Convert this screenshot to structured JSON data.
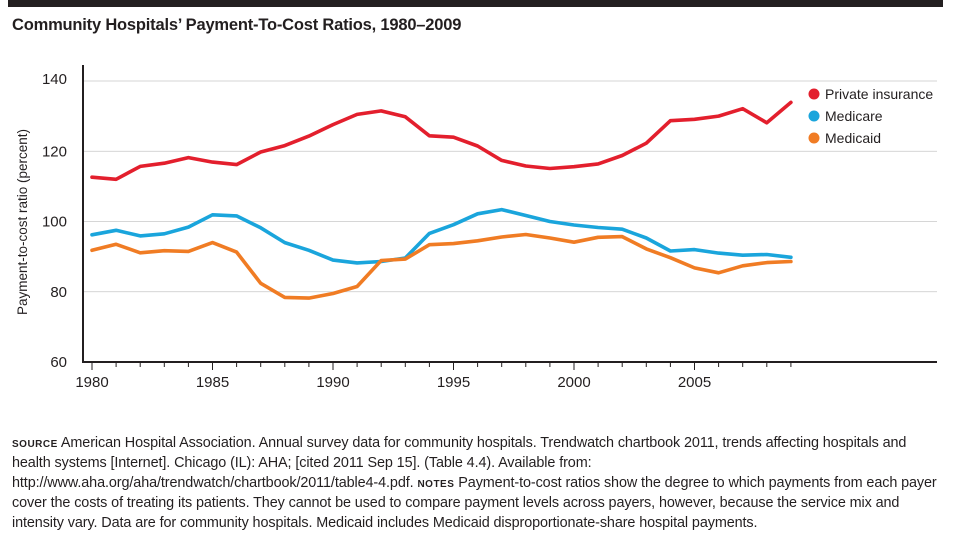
{
  "header": {
    "title": "Community Hospitals’ Payment-To-Cost Ratios, 1980–2009"
  },
  "footnote": {
    "source_label": "Source",
    "source_text": "American Hospital Association. Annual survey data for community hospitals. Trendwatch chartbook 2011, trends affecting hospitals and health systems [Internet]. Chicago (IL): AHA; [cited 2011 Sep 15]. (Table 4.4). Available from: http://www.aha.org/aha/trendwatch/chartbook/2011/table4-4.pdf.",
    "notes_label": "Notes",
    "notes_text": "Payment-to-cost ratios show the degree to which payments from each payer cover the costs of treating its patients. They cannot be used to compare payment levels across payers, however, because the service mix and intensity vary. Data are for community hospitals. Medicaid includes Medicaid disproportionate-share hospital payments."
  },
  "chart_data": {
    "type": "line",
    "title": "Community Hospitals’ Payment-To-Cost Ratios, 1980–2009",
    "xlabel": "",
    "ylabel": "Payment-to-cost ratio (percent)",
    "xlim": [
      1980,
      2015
    ],
    "ylim": [
      60,
      140
    ],
    "x_ticks": [
      1980,
      1985,
      1990,
      1995,
      2000,
      2005
    ],
    "y_ticks": [
      60,
      80,
      100,
      120,
      140
    ],
    "grid": "horizontal",
    "legend_position": "top-right",
    "x": [
      1980,
      1981,
      1982,
      1983,
      1984,
      1985,
      1986,
      1987,
      1988,
      1989,
      1990,
      1991,
      1992,
      1993,
      1994,
      1995,
      1996,
      1997,
      1998,
      1999,
      2000,
      2001,
      2002,
      2003,
      2004,
      2005,
      2006,
      2007,
      2008,
      2009
    ],
    "series": [
      {
        "name": "Private insurance",
        "color": "#e31f2d",
        "values": [
          112.6,
          112.0,
          115.7,
          116.6,
          118.2,
          116.9,
          116.2,
          119.8,
          121.6,
          124.3,
          127.6,
          130.5,
          131.5,
          129.8,
          124.4,
          124.0,
          121.5,
          117.4,
          115.8,
          115.1,
          115.6,
          116.4,
          118.8,
          122.3,
          128.7,
          129.1,
          130.0,
          132.1,
          128.1,
          133.9
        ]
      },
      {
        "name": "Medicare",
        "color": "#1aa5dc",
        "values": [
          96.2,
          97.5,
          95.9,
          96.5,
          98.4,
          101.9,
          101.6,
          98.2,
          94.0,
          91.8,
          89.0,
          88.2,
          88.6,
          89.6,
          96.6,
          99.1,
          102.2,
          103.4,
          101.7,
          100.0,
          99.0,
          98.3,
          97.8,
          95.3,
          91.6,
          92.0,
          91.0,
          90.4,
          90.6,
          89.8
        ]
      },
      {
        "name": "Medicaid",
        "color": "#f07c24",
        "values": [
          91.8,
          93.5,
          91.1,
          91.7,
          91.5,
          94.0,
          91.3,
          82.4,
          78.4,
          78.2,
          79.5,
          81.5,
          88.9,
          89.3,
          93.4,
          93.7,
          94.5,
          95.6,
          96.3,
          95.3,
          94.1,
          95.5,
          95.7,
          92.2,
          89.7,
          86.8,
          85.4,
          87.4,
          88.3,
          88.6
        ]
      }
    ]
  }
}
